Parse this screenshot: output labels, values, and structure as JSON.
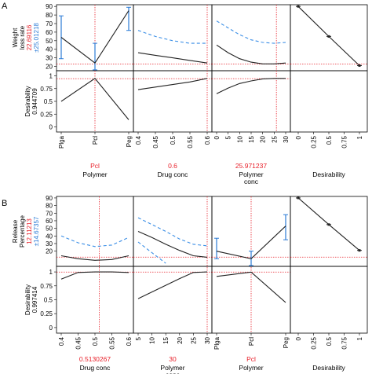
{
  "colors": {
    "red": "#e8202a",
    "blue": "#2b7bd6",
    "dash_blue": "#3a8ee6",
    "line": "#222222"
  },
  "panels": [
    {
      "label": "A",
      "response": {
        "name_lines": [
          "Weight",
          "loss rate"
        ],
        "value": "22.69116",
        "ci": "±25.01218"
      },
      "desirability": {
        "name": "Desirability",
        "value": "0.944709"
      },
      "factors": [
        {
          "type": "categorical",
          "name_lines": [
            "Polymer"
          ],
          "current": "Pcl",
          "categories": [
            "Plga",
            "Pcl",
            "Peg"
          ],
          "response_values": [
            54,
            24,
            85
          ],
          "ci_low": [
            29,
            16,
            62
          ],
          "ci_high": [
            79,
            47,
            89
          ],
          "desirability_values": [
            0.5,
            0.95,
            0.14
          ],
          "ticks": [
            "Plga",
            "Pcl",
            "Peg"
          ]
        },
        {
          "type": "line",
          "name_lines": [
            "Drug conc"
          ],
          "current": "0.6",
          "xlim": [
            0.4,
            0.6
          ],
          "ticks": [
            "0.4",
            "0.45",
            "0.5",
            "0.55",
            "0.6"
          ],
          "x": [
            0.4,
            0.45,
            0.5,
            0.55,
            0.6
          ],
          "response_values": [
            36,
            33,
            30,
            27,
            24
          ],
          "ci_upper": [
            62,
            55,
            50,
            47,
            47
          ],
          "ci_lower": null,
          "desirability_values": [
            0.73,
            0.78,
            0.83,
            0.88,
            0.95
          ]
        },
        {
          "type": "line",
          "name_lines": [
            "Polymer",
            "conc"
          ],
          "current": "25.971237",
          "xlim": [
            0,
            30
          ],
          "ticks": [
            "0",
            "5",
            "10",
            "15",
            "20",
            "25",
            "30"
          ],
          "x": [
            0,
            5,
            10,
            15,
            20,
            25,
            30
          ],
          "response_values": [
            45,
            36,
            29,
            25,
            23,
            23,
            24
          ],
          "ci_upper": [
            73,
            65,
            57,
            51,
            48,
            47,
            48
          ],
          "ci_lower": null,
          "desirability_values": [
            0.65,
            0.76,
            0.85,
            0.9,
            0.94,
            0.95,
            0.95
          ]
        }
      ],
      "desirability_panel": {
        "name": "Desirability",
        "ticks": [
          "0",
          "0.25",
          "0.5",
          "0.75",
          "1"
        ],
        "x": [
          0,
          0.5,
          1
        ],
        "y": [
          90,
          55,
          21
        ]
      },
      "y_ticks_response": [
        "90",
        "80",
        "70",
        "60",
        "50",
        "40",
        "30",
        "20"
      ],
      "y_ticks_desirability": [
        "1",
        "0.75",
        "0.5",
        "0.25",
        "0"
      ]
    },
    {
      "label": "B",
      "response": {
        "name_lines": [
          "Release",
          "Percentage"
        ],
        "value": "12.11213",
        "ci": "±14.67357"
      },
      "desirability": {
        "name": "Desirability",
        "value": "0.997414"
      },
      "factors": [
        {
          "type": "line",
          "name_lines": [
            "Drug conc"
          ],
          "current": "0.5130267",
          "xlim": [
            0.4,
            0.6
          ],
          "ticks": [
            "0.4",
            "0.45",
            "0.5",
            "0.55",
            "0.6"
          ],
          "x": [
            0.4,
            0.45,
            0.5,
            0.55,
            0.6
          ],
          "response_values": [
            14,
            10,
            8,
            9,
            14
          ],
          "ci_upper": [
            40,
            31,
            26,
            28,
            38
          ],
          "ci_lower": null,
          "desirability_values": [
            0.87,
            0.99,
            1.0,
            1.0,
            0.99
          ]
        },
        {
          "type": "line",
          "name_lines": [
            "Polymer",
            "conc"
          ],
          "current": "30",
          "xlim": [
            5,
            30
          ],
          "ticks": [
            "5",
            "10",
            "15",
            "20",
            "25",
            "30"
          ],
          "x": [
            5,
            10,
            15,
            20,
            25,
            30
          ],
          "response_values": [
            46,
            38,
            29,
            21,
            14,
            12
          ],
          "ci_upper": [
            64,
            55,
            46,
            36,
            29,
            27
          ],
          "ci_lower": [
            32,
            18,
            4,
            null,
            null,
            null
          ],
          "desirability_values": [
            0.52,
            0.64,
            0.76,
            0.88,
            0.99,
            1.0
          ]
        },
        {
          "type": "categorical",
          "name_lines": [
            "Polymer"
          ],
          "current": "Pcl",
          "categories": [
            "Plga",
            "Pcl",
            "Peg"
          ],
          "response_values": [
            20,
            10,
            53
          ],
          "ci_low": [
            10,
            1,
            35
          ],
          "ci_high": [
            37,
            20,
            68
          ],
          "desirability_values": [
            0.92,
            0.997,
            0.45
          ],
          "ticks": [
            "Plga",
            "Pcl",
            "Peg"
          ]
        }
      ],
      "desirability_panel": {
        "name": "Desirability",
        "ticks": [
          "0",
          "0.25",
          "0.5",
          "0.75",
          "1"
        ],
        "x": [
          0,
          0.5,
          1
        ],
        "y": [
          90,
          55,
          21
        ]
      },
      "y_ticks_response": [
        "90",
        "80",
        "70",
        "60",
        "50",
        "40",
        "30",
        "20"
      ],
      "y_ticks_desirability": [
        "1",
        "0.75",
        "0.5",
        "0.25",
        "0"
      ]
    }
  ],
  "chart_data": [
    {
      "type": "line",
      "title": "",
      "panel": "A",
      "ylabel": "Weight loss rate",
      "ylim": [
        15,
        92
      ],
      "series": [
        {
          "name": "",
          "factor": "Polymer",
          "categories": [
            "Plga",
            "Pcl",
            "Peg"
          ],
          "values": [
            54,
            24,
            85
          ],
          "desirability": [
            0.5,
            0.95,
            0.14
          ]
        },
        {
          "name": "",
          "factor": "Drug conc",
          "x": [
            0.4,
            0.45,
            0.5,
            0.55,
            0.6
          ],
          "values": [
            36,
            33,
            30,
            27,
            24
          ],
          "desirability": [
            0.73,
            0.78,
            0.83,
            0.88,
            0.95
          ]
        },
        {
          "name": "",
          "factor": "Polymer conc",
          "x": [
            0,
            5,
            10,
            15,
            20,
            25,
            30
          ],
          "values": [
            45,
            36,
            29,
            25,
            23,
            23,
            24
          ],
          "desirability": [
            0.65,
            0.76,
            0.85,
            0.9,
            0.94,
            0.95,
            0.95
          ]
        }
      ]
    },
    {
      "type": "line",
      "title": "",
      "panel": "B",
      "ylabel": "Release Percentage",
      "ylim": [
        0,
        92
      ],
      "series": [
        {
          "name": "",
          "factor": "Drug conc",
          "x": [
            0.4,
            0.45,
            0.5,
            0.55,
            0.6
          ],
          "values": [
            14,
            10,
            8,
            9,
            14
          ],
          "desirability": [
            0.87,
            0.99,
            1.0,
            1.0,
            0.99
          ]
        },
        {
          "name": "",
          "factor": "Polymer conc",
          "x": [
            5,
            10,
            15,
            20,
            25,
            30
          ],
          "values": [
            46,
            38,
            29,
            21,
            14,
            12
          ],
          "desirability": [
            0.52,
            0.64,
            0.76,
            0.88,
            0.99,
            1.0
          ]
        },
        {
          "name": "",
          "factor": "Polymer",
          "categories": [
            "Plga",
            "Pcl",
            "Peg"
          ],
          "values": [
            20,
            10,
            53
          ],
          "desirability": [
            0.92,
            0.997,
            0.45
          ]
        }
      ]
    }
  ]
}
